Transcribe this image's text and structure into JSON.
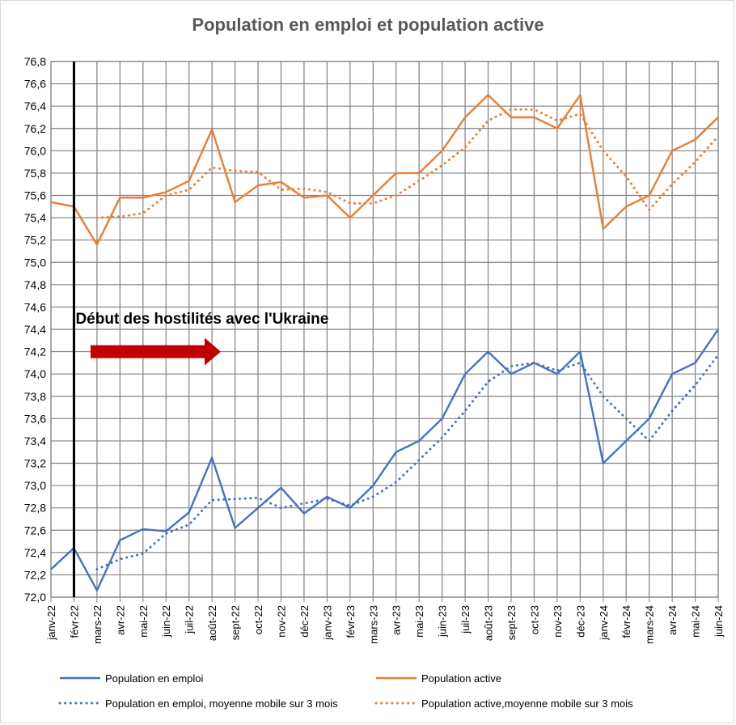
{
  "chart_data": {
    "type": "line",
    "title": "Population en emploi et population active",
    "xlabel": "",
    "ylabel": "",
    "ylim": [
      72.0,
      76.8
    ],
    "ystep": 0.2,
    "grid": true,
    "legend_position": "bottom",
    "categories": [
      "janv-22",
      "févr-22",
      "mars-22",
      "avr-22",
      "mai-22",
      "juin-22",
      "juil-22",
      "août-22",
      "sept-22",
      "oct-22",
      "nov-22",
      "déc-22",
      "janv-23",
      "févr-23",
      "mars-23",
      "avr-23",
      "mai-23",
      "juin-23",
      "juil-23",
      "août-23",
      "sept-23",
      "oct-23",
      "nov-23",
      "déc-23",
      "janv-24",
      "févr-24",
      "mars-24",
      "avr-24",
      "mai-24",
      "juin-24"
    ],
    "series": [
      {
        "name": "Population en emploi",
        "color": "#4472c4",
        "style": "solid",
        "values": [
          72.25,
          72.44,
          72.06,
          72.51,
          72.61,
          72.59,
          72.76,
          73.25,
          72.62,
          72.8,
          72.98,
          72.75,
          72.9,
          72.8,
          73.0,
          73.3,
          73.4,
          73.6,
          74.0,
          74.2,
          74.0,
          74.1,
          74.0,
          74.2,
          73.2,
          73.4,
          73.6,
          74.0,
          74.1,
          74.4
        ]
      },
      {
        "name": "Population active",
        "color": "#ed7d31",
        "style": "solid",
        "values": [
          75.54,
          75.5,
          75.16,
          75.58,
          75.58,
          75.63,
          75.73,
          76.19,
          75.54,
          75.69,
          75.72,
          75.58,
          75.6,
          75.4,
          75.6,
          75.8,
          75.8,
          76.0,
          76.3,
          76.5,
          76.3,
          76.3,
          76.2,
          76.5,
          75.3,
          75.5,
          75.6,
          76.0,
          76.1,
          76.3
        ]
      },
      {
        "name": "Population en emploi, moyenne mobile sur 3 mois",
        "color": "#4472c4",
        "style": "dotted",
        "values": [
          null,
          null,
          72.25,
          72.34,
          72.39,
          72.57,
          72.65,
          72.87,
          72.88,
          72.89,
          72.8,
          72.84,
          72.88,
          72.82,
          72.9,
          73.03,
          73.23,
          73.43,
          73.67,
          73.93,
          74.07,
          74.1,
          74.03,
          74.1,
          73.8,
          73.6,
          73.4,
          73.67,
          73.9,
          74.17
        ]
      },
      {
        "name": "Population active,moyenne mobile sur 3 mois",
        "color": "#ed7d31",
        "style": "dotted",
        "values": [
          null,
          null,
          75.4,
          75.41,
          75.44,
          75.6,
          75.65,
          75.85,
          75.82,
          75.81,
          75.65,
          75.66,
          75.63,
          75.53,
          75.53,
          75.6,
          75.73,
          75.87,
          76.03,
          76.27,
          76.37,
          76.37,
          76.27,
          76.33,
          76.0,
          75.77,
          75.47,
          75.7,
          75.9,
          76.13
        ]
      }
    ],
    "annotation": {
      "text": "Début des hostilités avec l'Ukraine",
      "marker_category": "févr-22",
      "arrow_color": "#c00000"
    }
  }
}
